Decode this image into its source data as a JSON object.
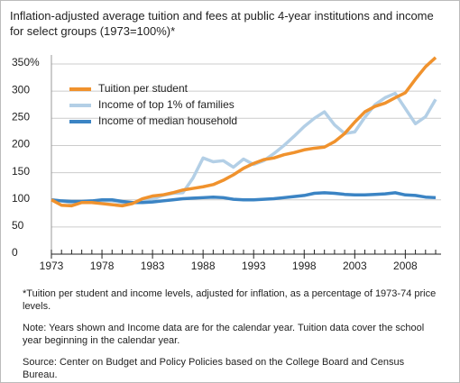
{
  "chart_data": {
    "type": "line",
    "title": "Inflation-adjusted average tuition and fees at public 4-year institutions and income for select groups (1973=100%)*",
    "x": [
      1973,
      1974,
      1975,
      1976,
      1977,
      1978,
      1979,
      1980,
      1981,
      1982,
      1983,
      1984,
      1985,
      1986,
      1987,
      1988,
      1989,
      1990,
      1991,
      1992,
      1993,
      1994,
      1995,
      1996,
      1997,
      1998,
      1999,
      2000,
      2001,
      2002,
      2003,
      2004,
      2005,
      2006,
      2007,
      2008,
      2009,
      2010,
      2011
    ],
    "xlim": [
      1973,
      2011
    ],
    "xticks": [
      1973,
      1978,
      1983,
      1988,
      1993,
      1998,
      2003,
      2008
    ],
    "ylim": [
      0,
      360
    ],
    "yticks": [
      0,
      50,
      100,
      150,
      200,
      250,
      300,
      {
        "value": 350,
        "label": "350%"
      }
    ],
    "grid": true,
    "legend": "upper-left",
    "series": [
      {
        "name": "Tuition per student",
        "color": "#f0922d",
        "values": [
          100,
          90,
          89,
          95,
          95,
          93,
          91,
          89,
          93,
          102,
          107,
          109,
          113,
          118,
          121,
          124,
          128,
          136,
          146,
          158,
          167,
          174,
          177,
          183,
          187,
          192,
          195,
          197,
          207,
          222,
          243,
          262,
          272,
          278,
          288,
          297,
          322,
          345,
          362
        ]
      },
      {
        "name": "Income of top 1% of families",
        "color": "#b3cfe6",
        "values": [
          100,
          98,
          94,
          96,
          97,
          98,
          98,
          95,
          94,
          97,
          101,
          108,
          112,
          113,
          140,
          177,
          170,
          172,
          160,
          175,
          165,
          172,
          185,
          200,
          217,
          235,
          250,
          262,
          238,
          222,
          225,
          252,
          275,
          288,
          296,
          268,
          240,
          253,
          285
        ]
      },
      {
        "name": "Income of median household",
        "color": "#3b84c4",
        "values": [
          100,
          98,
          97,
          97,
          98,
          100,
          100,
          97,
          95,
          95,
          96,
          98,
          100,
          102,
          103,
          104,
          105,
          104,
          101,
          100,
          100,
          101,
          102,
          104,
          106,
          108,
          112,
          113,
          112,
          110,
          109,
          109,
          110,
          111,
          113,
          109,
          108,
          105,
          104
        ]
      }
    ]
  },
  "notes": [
    "*Tuition per student and income levels, adjusted for inflation, as a percentage of 1973-74 price levels.",
    "Note:  Years shown and Income data are for the calendar year.  Tuition data cover the school year beginning in the calendar year.",
    "Source:  Center on Budget and Policy Policies based on the College Board and Census Bureau."
  ]
}
